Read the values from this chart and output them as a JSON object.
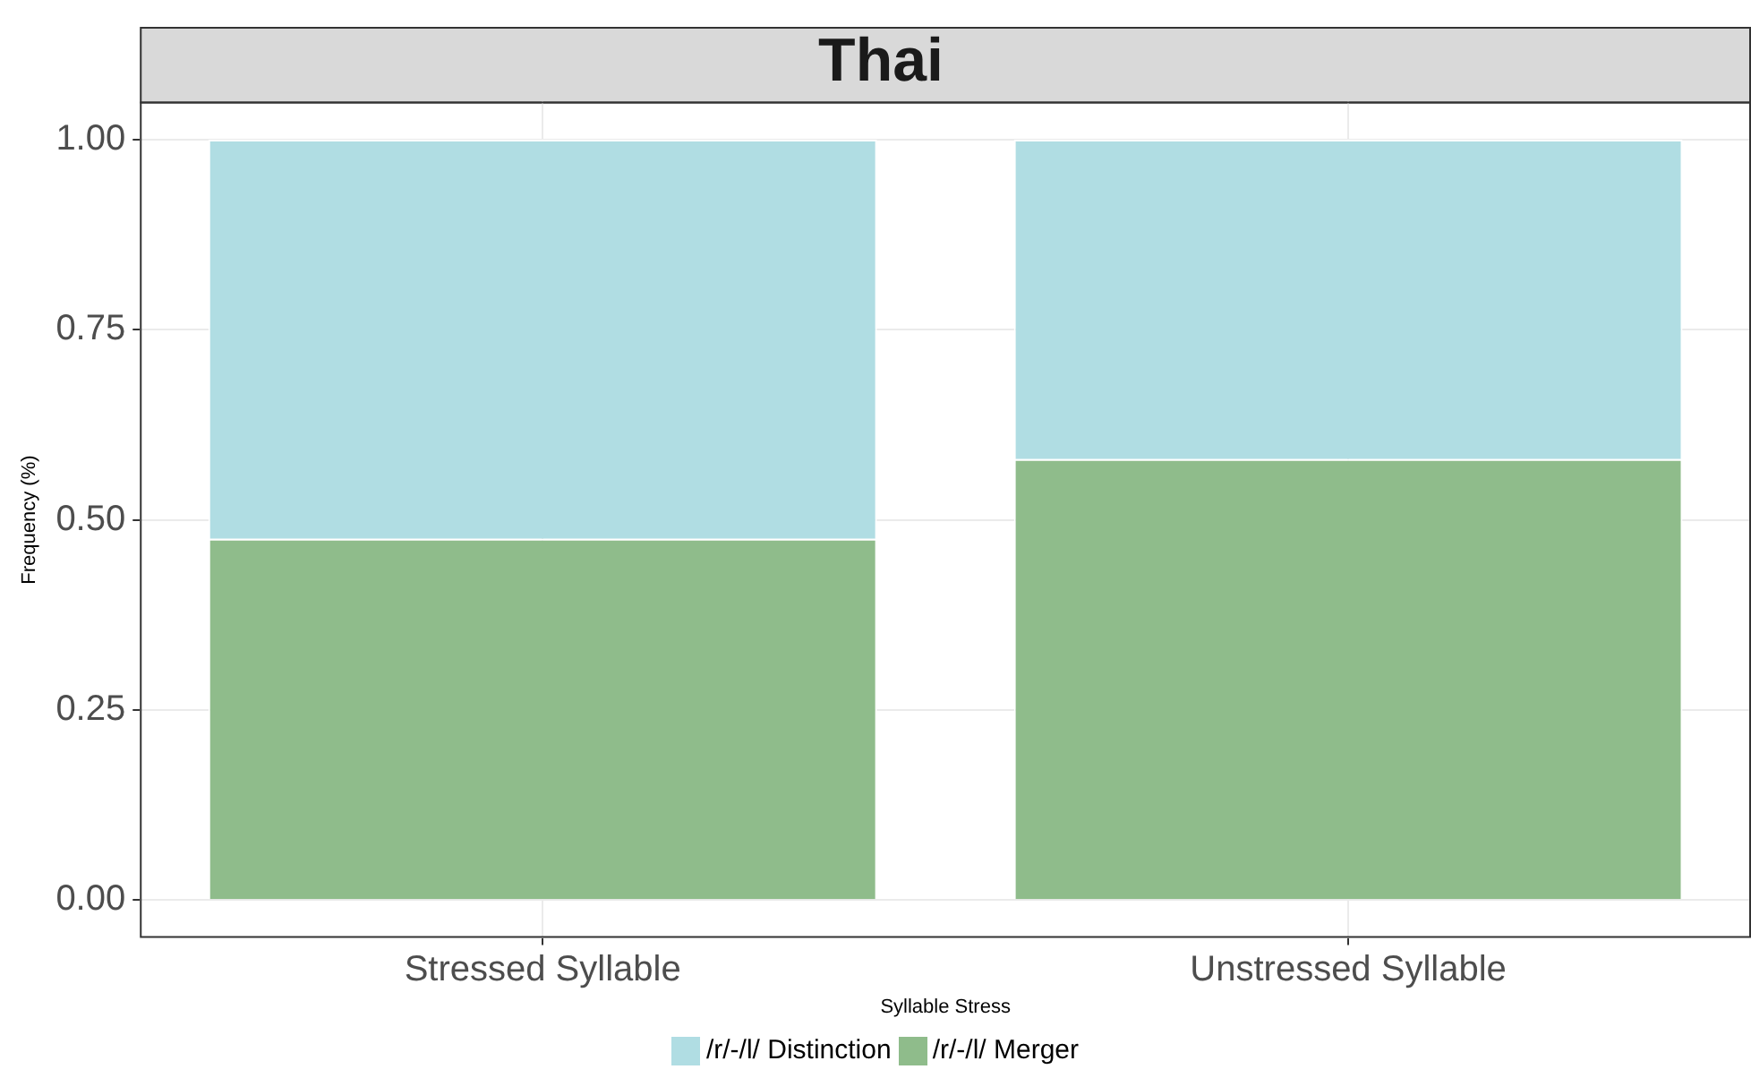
{
  "chart_data": {
    "type": "bar",
    "title": "Thai",
    "xlabel": "Syllable Stress",
    "ylabel": "Frequency (%)",
    "categories": [
      "Stressed Syllable",
      "Unstressed Syllable"
    ],
    "series": [
      {
        "name": "/r/-/l/ Merger",
        "color": "#8fbc8b",
        "values": [
          0.475,
          0.58
        ]
      },
      {
        "name": "/r/-/l/ Distinction",
        "color": "#b0dde3",
        "values": [
          0.525,
          0.42
        ]
      }
    ],
    "stacked": true,
    "ylim": [
      -0.05,
      1.05
    ],
    "yticks": [
      {
        "value": 0,
        "label": "0.00"
      },
      {
        "value": 0.25,
        "label": "0.25"
      },
      {
        "value": 0.5,
        "label": "0.50"
      },
      {
        "value": 0.75,
        "label": "0.75"
      },
      {
        "value": 1,
        "label": "1.00"
      }
    ],
    "grid": true,
    "legend": "bottom"
  }
}
